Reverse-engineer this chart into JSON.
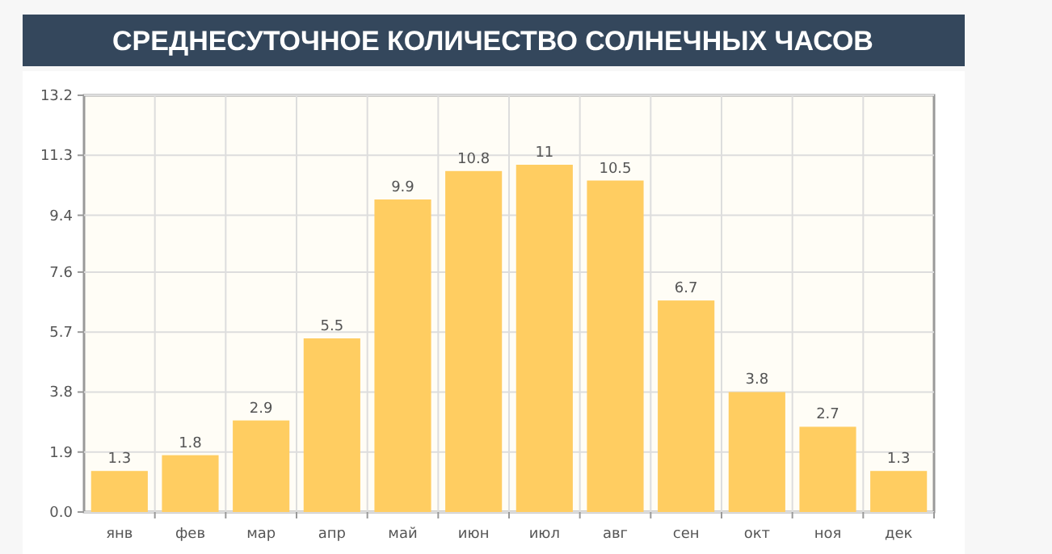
{
  "chart_data": {
    "type": "bar",
    "title": "СРЕДНЕСУТОЧНОЕ КОЛИЧЕСТВО СОЛНЕЧНЫХ ЧАСОВ",
    "categories": [
      "янв",
      "фев",
      "мар",
      "апр",
      "май",
      "июн",
      "июл",
      "авг",
      "сен",
      "окт",
      "ноя",
      "дек"
    ],
    "values": [
      1.3,
      1.8,
      2.9,
      5.5,
      9.9,
      10.8,
      11,
      10.5,
      6.7,
      3.8,
      2.7,
      1.3
    ],
    "color": "#ffcd61",
    "ylim": [
      0,
      13.2
    ],
    "yticks": [
      {
        "value": 0,
        "label": "0.0"
      },
      1.9,
      3.8,
      5.7,
      7.6,
      9.4,
      11.3,
      13.2
    ],
    "grid": true,
    "data_labels": true
  }
}
